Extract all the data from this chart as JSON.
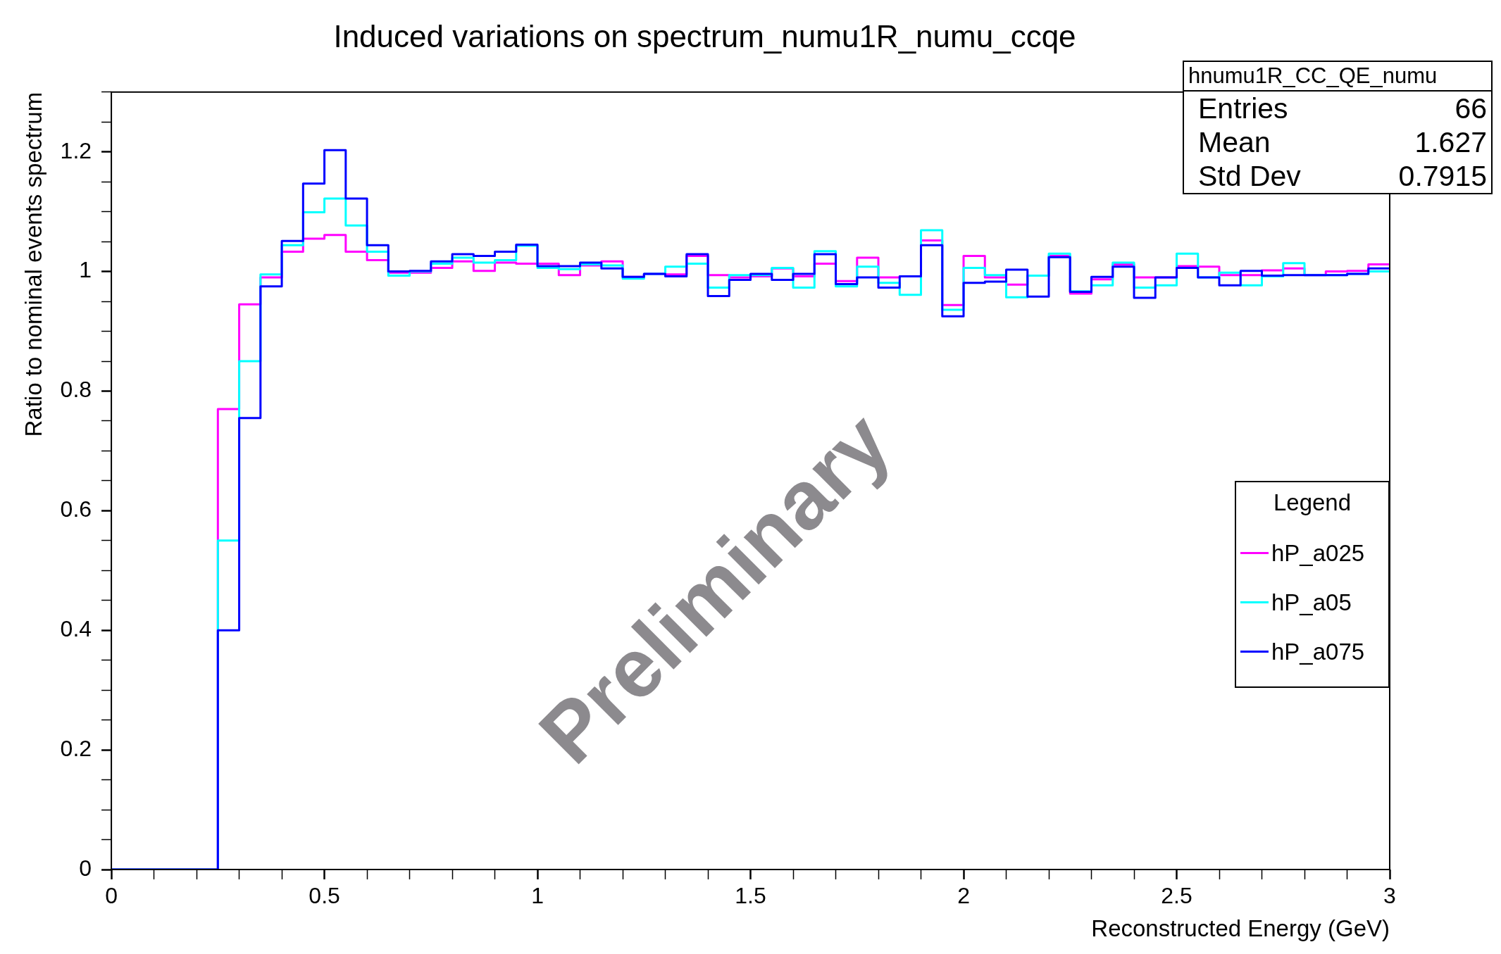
{
  "chart_data": {
    "type": "histogram",
    "title": "Induced variations on spectrum_numu1R_numu_ccqe",
    "xlabel": "Reconstructed Energy (GeV)",
    "ylabel": "Ratio to nominal events spectrum",
    "legend_title": "Legend",
    "legend": "right",
    "grid": false,
    "bins": [
      0,
      0.05,
      0.1,
      0.15,
      0.2,
      0.25,
      0.3,
      0.35,
      0.4,
      0.45,
      0.5,
      0.55,
      0.6,
      0.65,
      0.7,
      0.75,
      0.8,
      0.85,
      0.9,
      0.95,
      1,
      1.05,
      1.1,
      1.15,
      1.2,
      1.25,
      1.3,
      1.35,
      1.4,
      1.45,
      1.5,
      1.55,
      1.6,
      1.65,
      1.7,
      1.75,
      1.8,
      1.85,
      1.9,
      1.95,
      2,
      2.05,
      2.1,
      2.15,
      2.2,
      2.25,
      2.3,
      2.35,
      2.4,
      2.45,
      2.5,
      2.55,
      2.6,
      2.65,
      2.7,
      2.75,
      2.8,
      2.85,
      2.9,
      2.95,
      3
    ],
    "series": [
      {
        "name": "hP_a025",
        "color": "#ff00ff",
        "values": [
          0,
          0,
          0,
          0,
          0,
          0.77,
          0.945,
          0.99,
          1.033,
          1.055,
          1.061,
          1.033,
          1.019,
          0.998,
          0.998,
          1.006,
          1.017,
          1.001,
          1.015,
          1.013,
          1.013,
          0.994,
          1.01,
          1.017,
          0.991,
          0.996,
          0.995,
          1.026,
          0.994,
          0.99,
          0.992,
          1.005,
          0.992,
          1.013,
          0.984,
          1.023,
          0.99,
          0.992,
          1.052,
          0.944,
          1.026,
          0.99,
          0.978,
          0.993,
          1.026,
          0.963,
          0.987,
          1.012,
          0.99,
          0.99,
          1.009,
          1.008,
          0.994,
          0.994,
          1.002,
          1.005,
          0.994,
          1.0,
          1.001,
          1.012
        ]
      },
      {
        "name": "hP_a05",
        "color": "#00ffff",
        "values": [
          0,
          0,
          0,
          0,
          0,
          0.55,
          0.85,
          0.995,
          1.044,
          1.099,
          1.122,
          1.077,
          1.033,
          0.993,
          1.0,
          1.013,
          1.023,
          1.015,
          1.019,
          1.043,
          1.006,
          1.004,
          1.012,
          1.01,
          0.988,
          0.996,
          1.008,
          1.013,
          0.973,
          0.994,
          0.994,
          1.006,
          0.973,
          1.034,
          0.975,
          1.008,
          0.981,
          0.961,
          1.069,
          0.936,
          1.006,
          0.994,
          0.957,
          0.993,
          1.03,
          0.967,
          0.977,
          1.015,
          0.973,
          0.977,
          1.03,
          0.99,
          0.998,
          0.977,
          0.992,
          1.014,
          0.994,
          0.994,
          0.996,
          1.0
        ]
      },
      {
        "name": "hP_a075",
        "color": "#0000ff",
        "values": [
          0,
          0,
          0,
          0,
          0,
          0.4,
          0.755,
          0.975,
          1.051,
          1.147,
          1.203,
          1.122,
          1.044,
          1.0,
          1.001,
          1.017,
          1.029,
          1.026,
          1.033,
          1.045,
          1.009,
          1.009,
          1.015,
          1.005,
          0.991,
          0.996,
          0.992,
          1.029,
          0.959,
          0.986,
          0.996,
          0.986,
          0.996,
          1.029,
          0.979,
          0.99,
          0.973,
          0.992,
          1.044,
          0.925,
          0.981,
          0.983,
          1.003,
          0.958,
          1.024,
          0.966,
          0.991,
          1.008,
          0.956,
          0.99,
          1.006,
          0.99,
          0.977,
          1.001,
          0.993,
          0.994,
          0.994,
          0.994,
          0.996,
          1.005
        ]
      }
    ],
    "xlim": [
      0,
      3
    ],
    "xticks": [
      0,
      {
        "value": 0.1,
        "label": null
      },
      {
        "value": 0.2,
        "label": null
      },
      {
        "value": 0.3,
        "label": null
      },
      {
        "value": 0.4,
        "label": null
      },
      0.5,
      {
        "value": 0.6,
        "label": null
      },
      {
        "value": 0.7,
        "label": null
      },
      {
        "value": 0.8,
        "label": null
      },
      {
        "value": 0.9,
        "label": null
      },
      1,
      {
        "value": 1.1,
        "label": null
      },
      {
        "value": 1.2,
        "label": null
      },
      {
        "value": 1.3,
        "label": null
      },
      {
        "value": 1.4,
        "label": null
      },
      1.5,
      {
        "value": 1.6,
        "label": null
      },
      {
        "value": 1.7,
        "label": null
      },
      {
        "value": 1.8,
        "label": null
      },
      {
        "value": 1.9,
        "label": null
      },
      2,
      {
        "value": 2.1,
        "label": null
      },
      {
        "value": 2.2,
        "label": null
      },
      {
        "value": 2.3,
        "label": null
      },
      {
        "value": 2.4,
        "label": null
      },
      2.5,
      {
        "value": 2.6,
        "label": null
      },
      {
        "value": 2.7,
        "label": null
      },
      {
        "value": 2.8,
        "label": null
      },
      {
        "value": 2.9,
        "label": null
      },
      3
    ],
    "ylim": [
      0,
      1.3
    ],
    "yticks": [
      0,
      {
        "value": 0.05,
        "label": null
      },
      {
        "value": 0.1,
        "label": null
      },
      {
        "value": 0.15,
        "label": null
      },
      0.2,
      {
        "value": 0.25,
        "label": null
      },
      {
        "value": 0.3,
        "label": null
      },
      {
        "value": 0.35,
        "label": null
      },
      0.4,
      {
        "value": 0.45,
        "label": null
      },
      {
        "value": 0.5,
        "label": null
      },
      {
        "value": 0.55,
        "label": null
      },
      0.6,
      {
        "value": 0.65,
        "label": null
      },
      {
        "value": 0.7,
        "label": null
      },
      {
        "value": 0.75,
        "label": null
      },
      0.8,
      {
        "value": 0.85,
        "label": null
      },
      {
        "value": 0.9,
        "label": null
      },
      {
        "value": 0.95,
        "label": null
      },
      1,
      {
        "value": 1.05,
        "label": null
      },
      {
        "value": 1.1,
        "label": null
      },
      {
        "value": 1.15,
        "label": null
      },
      1.2,
      {
        "value": 1.25,
        "label": null
      },
      {
        "value": 1.3,
        "label": null
      }
    ],
    "annotations": [
      "hnumu1R_CC_QE_numu",
      "Entries 66",
      "Mean 1.627",
      "Std Dev 0.7915",
      "Preliminary"
    ]
  }
}
